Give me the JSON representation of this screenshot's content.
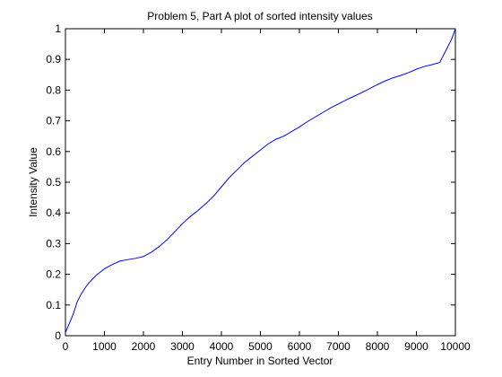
{
  "chart_data": {
    "type": "line",
    "title": "Problem 5, Part A plot of sorted intensity values",
    "xlabel": "Entry Number in Sorted Vector",
    "ylabel": "Intensity Value",
    "xlim": [
      0,
      10000
    ],
    "ylim": [
      0,
      1
    ],
    "xticks": [
      0,
      1000,
      2000,
      3000,
      4000,
      5000,
      6000,
      7000,
      8000,
      9000,
      10000
    ],
    "xtick_labels": [
      "0",
      "1000",
      "2000",
      "3000",
      "4000",
      "5000",
      "6000",
      "7000",
      "8000",
      "9000",
      "10000"
    ],
    "yticks": [
      0,
      0.1,
      0.2,
      0.3,
      0.4,
      0.5,
      0.6,
      0.7,
      0.8,
      0.9,
      1
    ],
    "ytick_labels": [
      "0",
      "0.1",
      "0.2",
      "0.3",
      "0.4",
      "0.5",
      "0.6",
      "0.7",
      "0.8",
      "0.9",
      "1"
    ],
    "grid": false,
    "legend": "none",
    "line_color": "#0000ff",
    "series": [
      {
        "x": [
          0,
          100,
          200,
          300,
          400,
          500,
          600,
          700,
          800,
          900,
          1000,
          1200,
          1400,
          1600,
          1800,
          2000,
          2200,
          2400,
          2600,
          2800,
          3000,
          3200,
          3400,
          3600,
          3800,
          4000,
          4200,
          4400,
          4600,
          4800,
          5000,
          5200,
          5400,
          5600,
          5800,
          6000,
          6200,
          6400,
          6600,
          6800,
          7000,
          7200,
          7400,
          7600,
          7800,
          8000,
          8200,
          8400,
          8600,
          8800,
          9000,
          9200,
          9400,
          9600,
          9700,
          9800,
          9900,
          10000
        ],
        "y": [
          0.01,
          0.04,
          0.07,
          0.11,
          0.135,
          0.155,
          0.172,
          0.185,
          0.198,
          0.208,
          0.218,
          0.232,
          0.243,
          0.248,
          0.252,
          0.258,
          0.272,
          0.29,
          0.312,
          0.338,
          0.365,
          0.388,
          0.408,
          0.43,
          0.455,
          0.485,
          0.515,
          0.54,
          0.565,
          0.585,
          0.605,
          0.625,
          0.64,
          0.65,
          0.665,
          0.68,
          0.697,
          0.712,
          0.727,
          0.742,
          0.755,
          0.768,
          0.78,
          0.792,
          0.805,
          0.818,
          0.83,
          0.84,
          0.848,
          0.857,
          0.868,
          0.877,
          0.883,
          0.89,
          0.915,
          0.94,
          0.965,
          1.0
        ]
      }
    ]
  }
}
